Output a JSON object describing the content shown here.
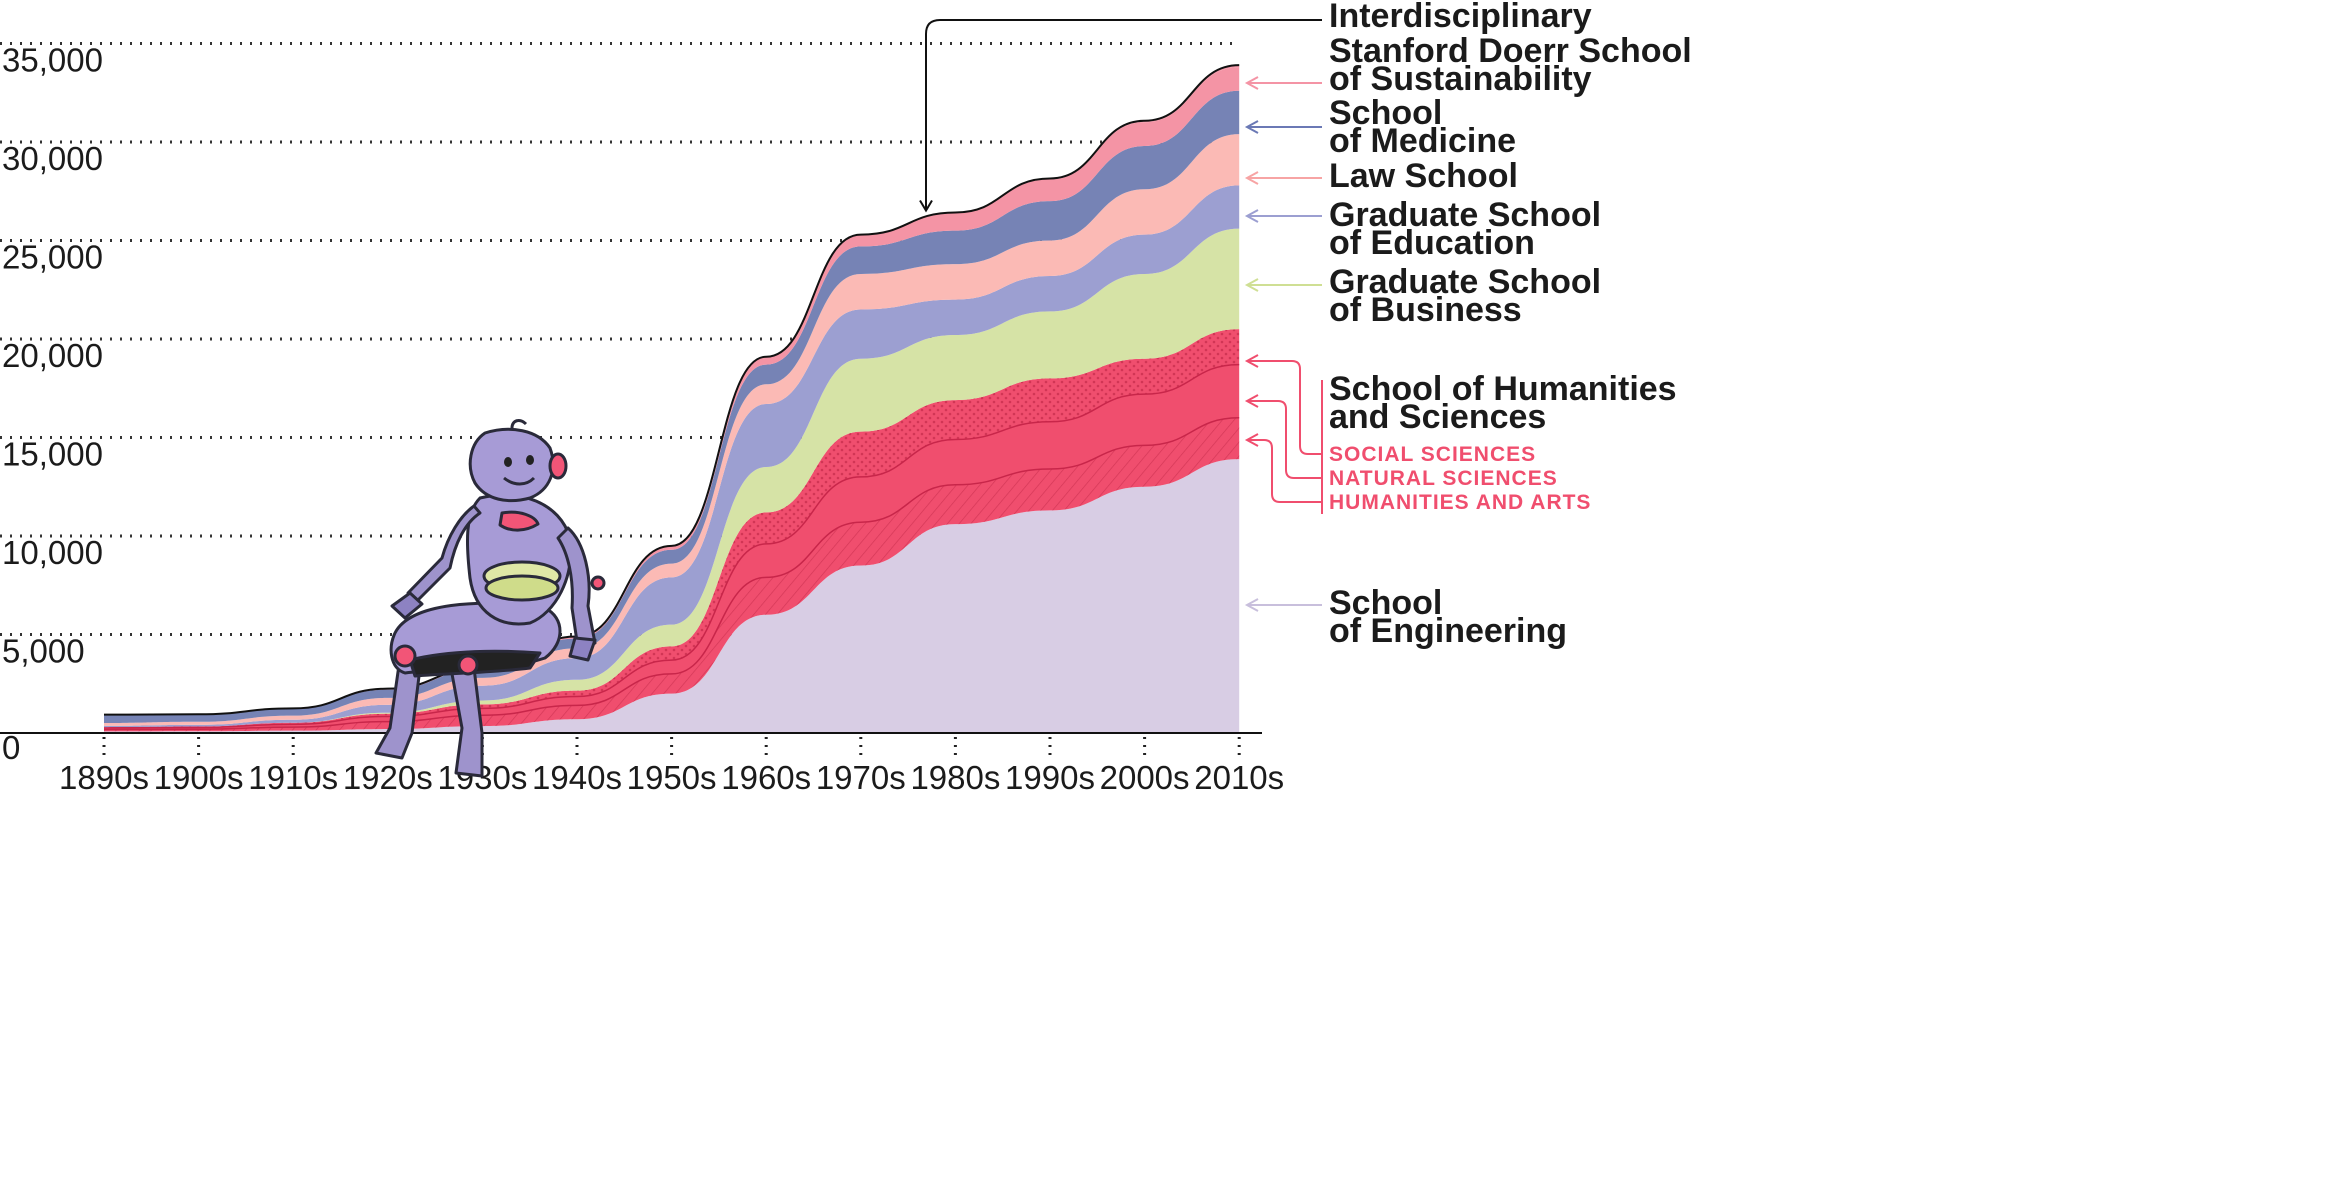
{
  "chart_data": {
    "type": "area",
    "stacked": true,
    "categories": [
      "1890s",
      "1900s",
      "1910s",
      "1920s",
      "1930s",
      "1940s",
      "1950s",
      "1960s",
      "1970s",
      "1980s",
      "1990s",
      "2000s",
      "2010s"
    ],
    "ylim": [
      0,
      35000
    ],
    "yticks": [
      {
        "value": 0,
        "label": "0"
      },
      {
        "value": 5000,
        "label": "5,000"
      },
      {
        "value": 10000,
        "label": "10,000"
      },
      {
        "value": 15000,
        "label": "15,000"
      },
      {
        "value": 20000,
        "label": "20,000"
      },
      {
        "value": 25000,
        "label": "25,000"
      },
      {
        "value": 30000,
        "label": "30,000"
      },
      {
        "value": 35000,
        "label": "35,000"
      }
    ],
    "grid": true,
    "series": [
      {
        "name": "School of Engineering",
        "key": "engineering",
        "color": "#d8cde4",
        "values": [
          80,
          90,
          120,
          200,
          350,
          700,
          2000,
          6000,
          8500,
          10600,
          11300,
          12500,
          13900
        ]
      },
      {
        "name": "Humanities and Arts",
        "key": "humanities_arts",
        "color": "#f04e6e",
        "values": [
          100,
          100,
          180,
          380,
          550,
          700,
          1000,
          1900,
          2200,
          2000,
          2100,
          2100,
          2100
        ]
      },
      {
        "name": "Natural Sciences",
        "key": "natural_sciences",
        "color": "#f04e6e",
        "values": [
          80,
          90,
          140,
          260,
          350,
          450,
          700,
          1700,
          2300,
          2300,
          2400,
          2600,
          2700
        ]
      },
      {
        "name": "Social Sciences",
        "key": "social_sciences",
        "color": "#f04e6e",
        "values": [
          40,
          50,
          80,
          140,
          200,
          300,
          700,
          1600,
          2300,
          2000,
          2200,
          1800,
          1800
        ]
      },
      {
        "name": "Graduate School of Business",
        "key": "business",
        "color": "#d6e3a6",
        "values": [
          0,
          0,
          0,
          50,
          200,
          550,
          1100,
          2300,
          3700,
          3300,
          3400,
          4300,
          5100
        ]
      },
      {
        "name": "Graduate School of Education",
        "key": "education",
        "color": "#9c9fd1",
        "values": [
          60,
          80,
          150,
          400,
          750,
          1100,
          2400,
          3200,
          2500,
          1800,
          1800,
          2000,
          2200
        ]
      },
      {
        "name": "Law School",
        "key": "law",
        "color": "#fbbab5",
        "values": [
          150,
          160,
          210,
          350,
          400,
          500,
          700,
          1000,
          1800,
          1800,
          1800,
          2300,
          2600
        ]
      },
      {
        "name": "School of Medicine",
        "key": "medicine",
        "color": "#7683b5",
        "values": [
          420,
          380,
          360,
          420,
          450,
          500,
          700,
          1000,
          1400,
          1700,
          2000,
          2200,
          2200
        ]
      },
      {
        "name": "Stanford Doerr School of Sustainability",
        "key": "sustainability",
        "color": "#f494a5",
        "values": [
          0,
          0,
          10,
          50,
          80,
          100,
          200,
          400,
          600,
          900,
          1100,
          1200,
          1200
        ]
      },
      {
        "name": "Interdisciplinary",
        "key": "interdisciplinary",
        "color": "#f494a5",
        "values": [
          0,
          0,
          0,
          0,
          0,
          0,
          0,
          0,
          0,
          20,
          50,
          80,
          100
        ]
      }
    ],
    "legend": [
      {
        "key": "interdisciplinary",
        "lines": [
          "Interdisciplinary"
        ],
        "arrow_color": "#111111"
      },
      {
        "key": "sustainability",
        "lines": [
          "Stanford Doerr School",
          "of Sustainability"
        ],
        "arrow_color": "#f494a5"
      },
      {
        "key": "medicine",
        "lines": [
          "School",
          "of Medicine"
        ],
        "arrow_color": "#6b79b5"
      },
      {
        "key": "law",
        "lines": [
          "Law School"
        ],
        "arrow_color": "#f7a4a4"
      },
      {
        "key": "education",
        "lines": [
          "Graduate School",
          "of Education"
        ],
        "arrow_color": "#9c9fd1"
      },
      {
        "key": "business",
        "lines": [
          "Graduate School",
          "of Business"
        ],
        "arrow_color": "#cfdf94"
      },
      {
        "key": "humanities_sciences",
        "lines": [
          "School of Humanities",
          "and Sciences"
        ],
        "arrow_color": "#f04e6e"
      },
      {
        "key": "engineering",
        "lines": [
          "School",
          "of Engineering"
        ],
        "arrow_color": "#c8bfdc"
      }
    ],
    "sub_legend": [
      {
        "key": "social_sciences",
        "label": "SOCIAL SCIENCES"
      },
      {
        "key": "natural_sciences",
        "label": "NATURAL SCIENCES"
      },
      {
        "key": "humanities_arts",
        "label": "HUMANITIES AND ARTS"
      }
    ],
    "sub_legend_color": "#f04e6e"
  }
}
